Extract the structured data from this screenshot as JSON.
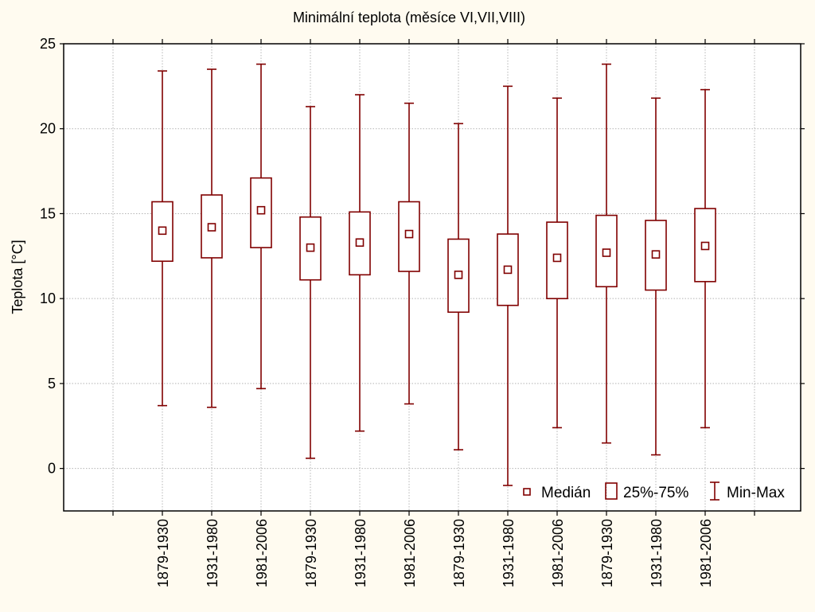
{
  "chart_data": {
    "type": "boxplot",
    "title": "Minimální teplota (měsíce VI,VII,VIII)",
    "xlabel": "",
    "ylabel": "Teplota [°C]",
    "ylim": [
      -2.5,
      25
    ],
    "yticks": [
      0,
      5,
      10,
      15,
      20,
      25
    ],
    "grid": true,
    "legend_position": "bottom-right",
    "categories": [
      "1879-1930",
      "1931-1980",
      "1981-2006",
      "1879-1930",
      "1931-1980",
      "1981-2006",
      "1879-1930",
      "1931-1980",
      "1981-2006",
      "1879-1930",
      "1931-1980",
      "1981-2006"
    ],
    "boxes": [
      {
        "min": 3.7,
        "q1": 12.2,
        "median": 14.0,
        "q3": 15.7,
        "max": 23.4
      },
      {
        "min": 3.6,
        "q1": 12.4,
        "median": 14.2,
        "q3": 16.1,
        "max": 23.5
      },
      {
        "min": 4.7,
        "q1": 13.0,
        "median": 15.2,
        "q3": 17.1,
        "max": 23.8
      },
      {
        "min": 0.6,
        "q1": 11.1,
        "median": 13.0,
        "q3": 14.8,
        "max": 21.3
      },
      {
        "min": 2.2,
        "q1": 11.4,
        "median": 13.3,
        "q3": 15.1,
        "max": 22.0
      },
      {
        "min": 3.8,
        "q1": 11.6,
        "median": 13.8,
        "q3": 15.7,
        "max": 21.5
      },
      {
        "min": 1.1,
        "q1": 9.2,
        "median": 11.4,
        "q3": 13.5,
        "max": 20.3
      },
      {
        "min": -1.0,
        "q1": 9.6,
        "median": 11.7,
        "q3": 13.8,
        "max": 22.5
      },
      {
        "min": 2.4,
        "q1": 10.0,
        "median": 12.4,
        "q3": 14.5,
        "max": 21.8
      },
      {
        "min": 1.5,
        "q1": 10.7,
        "median": 12.7,
        "q3": 14.9,
        "max": 23.8
      },
      {
        "min": 0.8,
        "q1": 10.5,
        "median": 12.6,
        "q3": 14.6,
        "max": 21.8
      },
      {
        "min": 2.4,
        "q1": 11.0,
        "median": 13.1,
        "q3": 15.3,
        "max": 22.3
      }
    ],
    "legend": [
      {
        "symbol": "square-marker",
        "label": "Medián"
      },
      {
        "symbol": "box",
        "label": "25%-75%"
      },
      {
        "symbol": "whisker",
        "label": "Min-Max"
      }
    ],
    "colors": {
      "series": "#800000",
      "background": "#fffbf0",
      "plot_background": "#ffffff",
      "grid": "#b4b4b4"
    }
  }
}
